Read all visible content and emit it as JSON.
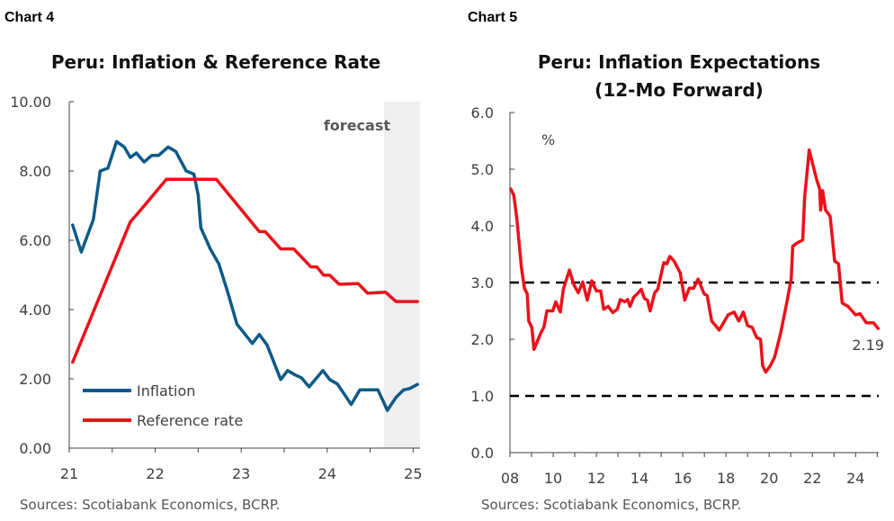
{
  "chart_data": [
    {
      "type": "line",
      "chart_label": "Chart 4",
      "title": "Peru: Inflation & Reference Rate",
      "source": "Sources: Scotiabank Economics, BCRP.",
      "xlim": [
        21,
        25.08
      ],
      "ylim": [
        0,
        10
      ],
      "x_ticks": [
        21,
        22,
        23,
        24,
        25
      ],
      "x_tick_labels": [
        "21",
        "22",
        "23",
        "24",
        "25"
      ],
      "y_ticks": [
        0,
        2,
        4,
        6,
        8,
        10
      ],
      "y_tick_labels": [
        "0.00",
        "2.00",
        "4.00",
        "6.00",
        "8.00",
        "10.00"
      ],
      "grid": false,
      "legend": "bottom-left",
      "shaded_region": {
        "label": "forecast",
        "from": 24.66,
        "to": 25.08,
        "color": "#efefef"
      },
      "series": [
        {
          "name": "Inflation",
          "color": "#0e5a87",
          "x": [
            21.04,
            21.14,
            21.28,
            21.36,
            21.45,
            21.55,
            21.64,
            21.71,
            21.78,
            21.87,
            21.96,
            22.04,
            22.15,
            22.24,
            22.36,
            22.45,
            22.5,
            22.53,
            22.64,
            22.74,
            22.85,
            22.95,
            23.13,
            23.21,
            23.3,
            23.46,
            23.54,
            23.63,
            23.7,
            23.79,
            23.95,
            24.03,
            24.12,
            24.28,
            24.38,
            24.59,
            24.7,
            24.8,
            24.89,
            24.96,
            25.05
          ],
          "y": [
            6.44,
            5.66,
            6.6,
            8.0,
            8.08,
            8.85,
            8.69,
            8.39,
            8.52,
            8.26,
            8.45,
            8.45,
            8.69,
            8.56,
            8.0,
            7.91,
            7.3,
            6.36,
            5.75,
            5.32,
            4.45,
            3.58,
            3.02,
            3.28,
            2.98,
            1.98,
            2.24,
            2.11,
            2.03,
            1.77,
            2.24,
            1.98,
            1.85,
            1.26,
            1.68,
            1.68,
            1.09,
            1.46,
            1.68,
            1.72,
            1.84
          ]
        },
        {
          "name": "Reference rate",
          "color": "#ec111a",
          "x": [
            21.04,
            21.71,
            21.83,
            22.13,
            22.71,
            23.21,
            23.28,
            23.46,
            23.61,
            23.81,
            23.88,
            23.96,
            24.03,
            24.14,
            24.36,
            24.47,
            24.68,
            24.8,
            25.05
          ],
          "y": [
            2.48,
            6.53,
            6.87,
            7.76,
            7.76,
            6.25,
            6.25,
            5.75,
            5.75,
            5.23,
            5.23,
            4.99,
            4.99,
            4.73,
            4.75,
            4.47,
            4.5,
            4.23,
            4.23
          ]
        }
      ]
    },
    {
      "type": "line",
      "chart_label": "Chart 5",
      "title": "Peru: Inflation Expectations",
      "subtitle": "(12-Mo Forward)",
      "ylabel": "%",
      "source": "Sources: Scotiabank Economics, BCRP.",
      "xlim": [
        8,
        25.07
      ],
      "ylim": [
        0,
        6
      ],
      "x_ticks": [
        8,
        10,
        12,
        14,
        16,
        18,
        20,
        22,
        24
      ],
      "x_tick_labels": [
        "08",
        "10",
        "12",
        "14",
        "16",
        "18",
        "20",
        "22",
        "24"
      ],
      "y_ticks": [
        0,
        1,
        2,
        3,
        4,
        5,
        6
      ],
      "y_tick_labels": [
        "0.0",
        "1.0",
        "2.0",
        "3.0",
        "4.0",
        "5.0",
        "6.0"
      ],
      "grid": false,
      "reference_lines": [
        3.0,
        1.0
      ],
      "end_label": "2.19",
      "series": [
        {
          "color": "#ec111a",
          "x": [
            8.04,
            8.18,
            8.32,
            8.53,
            8.67,
            8.8,
            8.87,
            9.01,
            9.11,
            9.43,
            9.57,
            9.71,
            9.98,
            10.12,
            10.33,
            10.47,
            10.75,
            10.96,
            11.16,
            11.37,
            11.58,
            11.79,
            12.0,
            12.2,
            12.34,
            12.55,
            12.76,
            12.97,
            13.11,
            13.32,
            13.45,
            13.56,
            13.73,
            13.94,
            14.08,
            14.22,
            14.36,
            14.49,
            14.7,
            14.84,
            15.12,
            15.26,
            15.4,
            15.6,
            15.88,
            16.09,
            16.3,
            16.5,
            16.71,
            16.99,
            17.13,
            17.34,
            17.69,
            18.1,
            18.38,
            18.59,
            18.8,
            19.0,
            19.21,
            19.42,
            19.6,
            19.7,
            19.84,
            20.05,
            20.25,
            20.53,
            20.81,
            21.02,
            21.09,
            21.3,
            21.55,
            21.64,
            21.85,
            21.99,
            22.2,
            22.34,
            22.38,
            22.47,
            22.61,
            22.82,
            23.03,
            23.21,
            23.38,
            23.65,
            24.0,
            24.21,
            24.49,
            24.83,
            25.04
          ],
          "y": [
            4.65,
            4.54,
            4.12,
            3.27,
            2.9,
            2.8,
            2.32,
            2.21,
            1.82,
            2.11,
            2.21,
            2.5,
            2.5,
            2.66,
            2.48,
            2.88,
            3.22,
            2.96,
            2.82,
            3.01,
            2.69,
            3.03,
            2.85,
            2.85,
            2.53,
            2.58,
            2.47,
            2.53,
            2.7,
            2.66,
            2.7,
            2.58,
            2.74,
            2.82,
            2.88,
            2.72,
            2.69,
            2.5,
            2.82,
            2.88,
            3.35,
            3.33,
            3.46,
            3.38,
            3.17,
            2.69,
            2.9,
            2.9,
            3.06,
            2.8,
            2.77,
            2.32,
            2.16,
            2.43,
            2.48,
            2.32,
            2.48,
            2.24,
            2.21,
            2.03,
            2.0,
            1.53,
            1.42,
            1.53,
            1.68,
            2.11,
            2.64,
            3.06,
            3.64,
            3.7,
            3.75,
            4.49,
            5.34,
            5.13,
            4.81,
            4.65,
            4.28,
            4.62,
            4.28,
            4.17,
            3.38,
            3.33,
            2.64,
            2.58,
            2.43,
            2.45,
            2.29,
            2.29,
            2.19
          ]
        }
      ]
    }
  ]
}
